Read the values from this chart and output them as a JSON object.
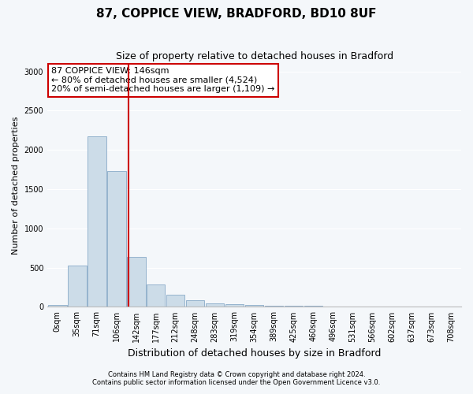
{
  "title_line1": "87, COPPICE VIEW, BRADFORD, BD10 8UF",
  "title_line2": "Size of property relative to detached houses in Bradford",
  "xlabel": "Distribution of detached houses by size in Bradford",
  "ylabel": "Number of detached properties",
  "categories": [
    "0sqm",
    "35sqm",
    "71sqm",
    "106sqm",
    "142sqm",
    "177sqm",
    "212sqm",
    "248sqm",
    "283sqm",
    "319sqm",
    "354sqm",
    "389sqm",
    "425sqm",
    "460sqm",
    "496sqm",
    "531sqm",
    "566sqm",
    "602sqm",
    "637sqm",
    "673sqm",
    "708sqm"
  ],
  "bar_values": [
    25,
    525,
    2175,
    1730,
    640,
    285,
    155,
    80,
    45,
    30,
    20,
    15,
    15,
    10,
    5,
    5,
    5,
    5,
    5,
    5,
    5
  ],
  "bar_color": "#ccdce8",
  "bar_edge_color": "#88aac8",
  "vline_color": "#cc0000",
  "annotation_title": "87 COPPICE VIEW: 146sqm",
  "annotation_line2": "← 80% of detached houses are smaller (4,524)",
  "annotation_line3": "20% of semi-detached houses are larger (1,109) →",
  "annotation_box_color": "#ffffff",
  "annotation_box_edge": "#cc0000",
  "ylim": [
    0,
    3100
  ],
  "yticks": [
    0,
    500,
    1000,
    1500,
    2000,
    2500,
    3000
  ],
  "footnote1": "Contains HM Land Registry data © Crown copyright and database right 2024.",
  "footnote2": "Contains public sector information licensed under the Open Government Licence v3.0.",
  "bg_color": "#f4f7fa",
  "plot_bg_color": "#f4f7fa",
  "title1_fontsize": 11,
  "title2_fontsize": 9,
  "ylabel_fontsize": 8,
  "xlabel_fontsize": 9,
  "annotation_fontsize": 8,
  "tick_fontsize": 7
}
